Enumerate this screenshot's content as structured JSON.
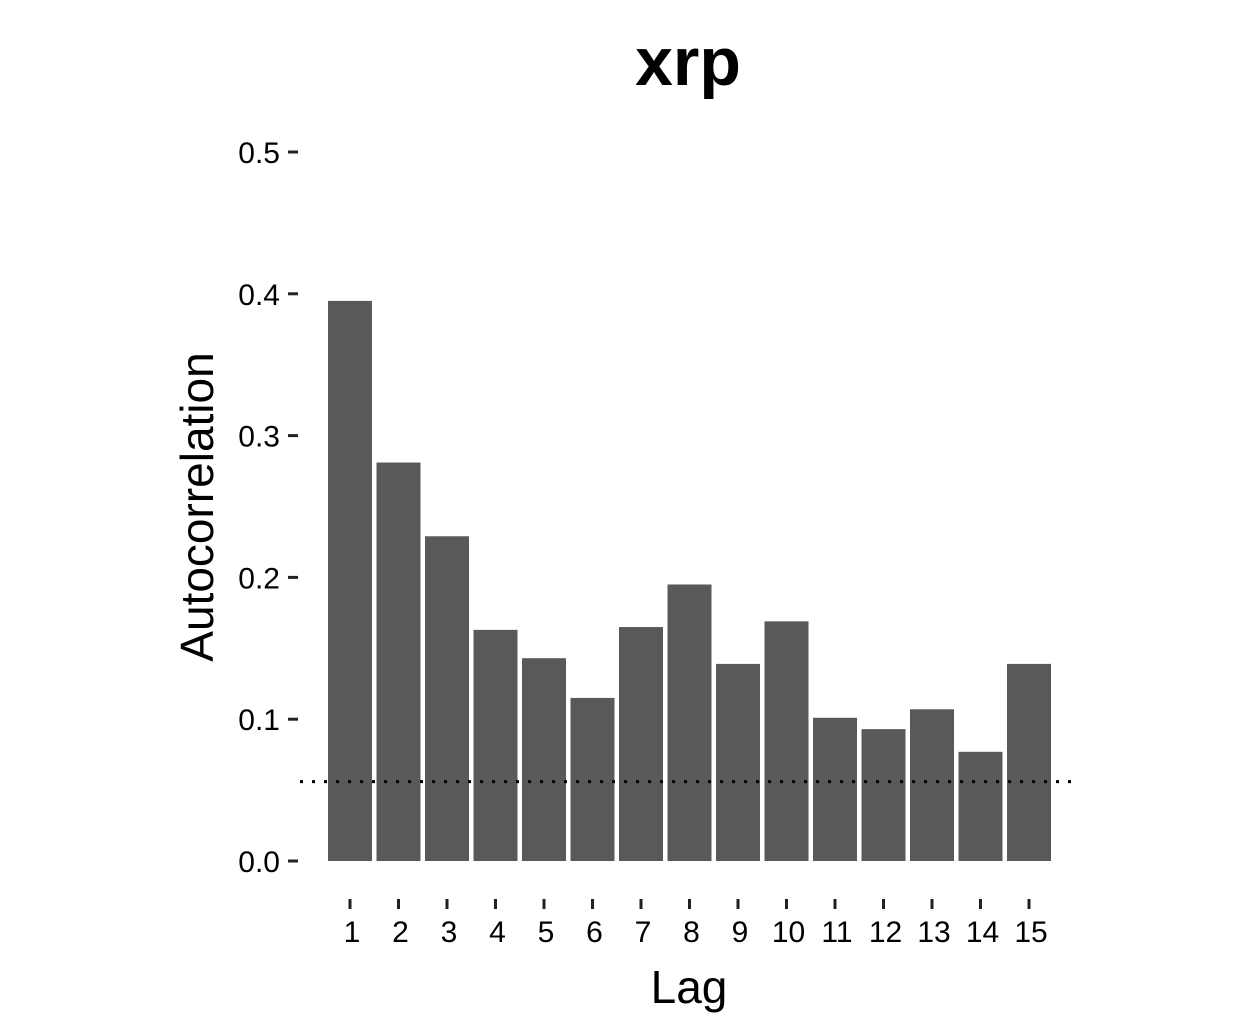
{
  "chart_data": {
    "type": "bar",
    "title": "xrp",
    "xlabel": "Lag",
    "ylabel": "Autocorrelation",
    "categories": [
      "1",
      "2",
      "3",
      "4",
      "5",
      "6",
      "7",
      "8",
      "9",
      "10",
      "11",
      "12",
      "13",
      "14",
      "15"
    ],
    "values": [
      0.395,
      0.281,
      0.229,
      0.163,
      0.143,
      0.115,
      0.165,
      0.195,
      0.139,
      0.169,
      0.101,
      0.093,
      0.107,
      0.077,
      0.139
    ],
    "yticks": [
      "0.0",
      "0.1",
      "0.2",
      "0.3",
      "0.4",
      "0.5"
    ],
    "ylim": [
      0,
      0.5
    ],
    "reference_line": 0.056,
    "grid": false,
    "bar_color": "#595959"
  }
}
